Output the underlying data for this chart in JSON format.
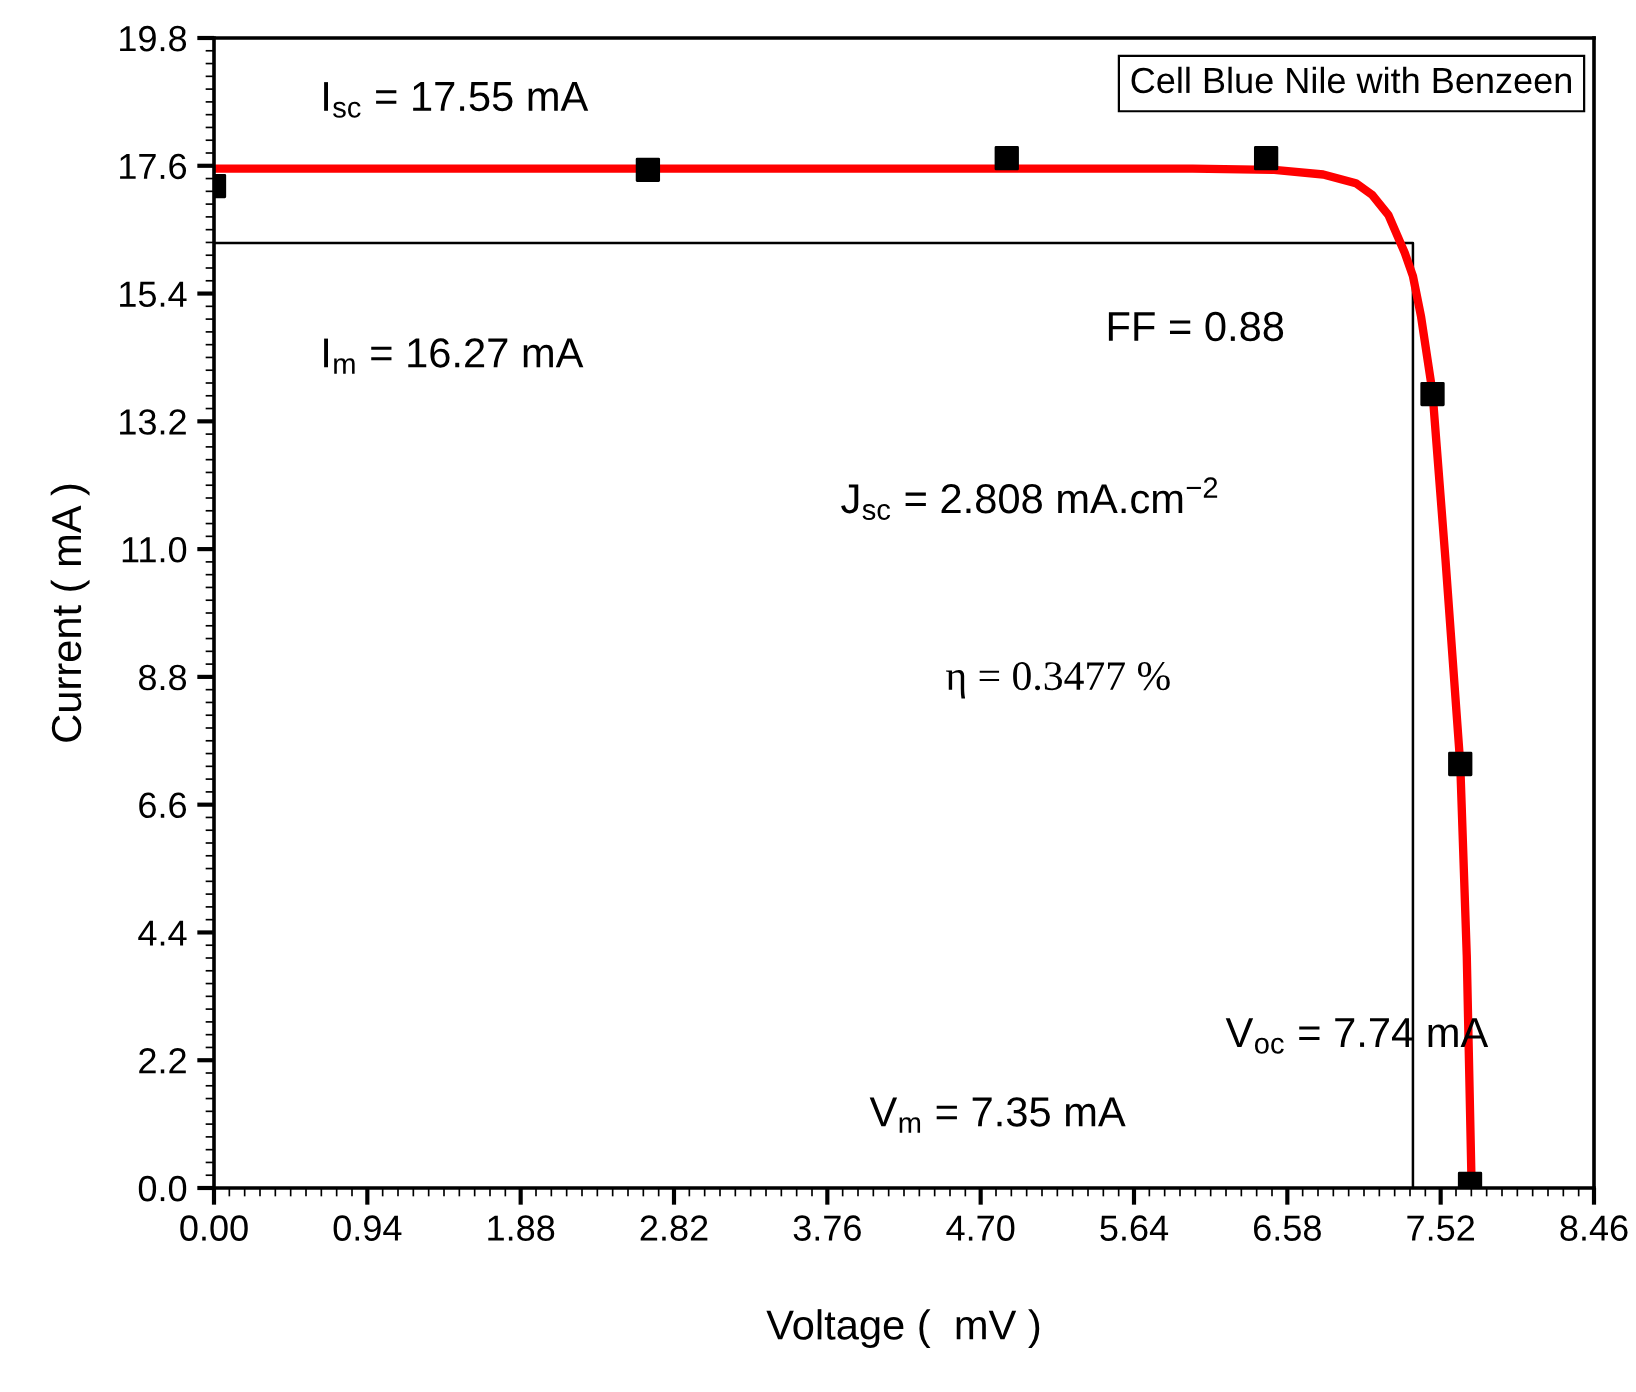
{
  "chart_data": {
    "type": "scatter",
    "xlabel": "Voltage (  mV )",
    "ylabel": "Current ( mA )",
    "legend_title": "Cell Blue Nile with Benzeen",
    "grid": false,
    "series": [
      {
        "color": "#000000",
        "marker": "square",
        "x": [
          0.0,
          2.66,
          4.86,
          6.45,
          7.47,
          7.64,
          7.7
        ],
        "values": [
          17.25,
          17.53,
          17.73,
          17.73,
          13.67,
          7.3,
          0.07
        ]
      },
      {
        "type": "line",
        "color": "#ff0000",
        "marker": "none",
        "line_style": "solid",
        "x": [
          0,
          1,
          2,
          3,
          4,
          5,
          6,
          6.5,
          6.8,
          7.0,
          7.1,
          7.2,
          7.3,
          7.35,
          7.4,
          7.47,
          7.55,
          7.64,
          7.68,
          7.71
        ],
        "values": [
          17.55,
          17.55,
          17.55,
          17.55,
          17.55,
          17.55,
          17.55,
          17.53,
          17.45,
          17.3,
          17.1,
          16.75,
          16.1,
          15.7,
          15.0,
          13.7,
          10.8,
          7.3,
          4.0,
          0.0
        ]
      },
      {
        "type": "line",
        "color": "#000000",
        "marker": "none",
        "line_style": "solid",
        "x": [
          0,
          7.35,
          7.35
        ],
        "values": [
          16.27,
          16.27,
          0
        ]
      }
    ],
    "annotations": [
      "I$_{sc}$ = 17.55 mA",
      "I$_{m}$ = 16.27 mA",
      "FF = 0.88",
      "J$_{sc}$ = 2.808 mA.cm$^{−2}$",
      "η = 0.3477 %",
      "V$_{oc}$ = 7.74 mA",
      "V$_{m}$ = 7.35 mA"
    ],
    "xlim": [
      0,
      8.46
    ],
    "ylim": [
      0,
      19.8
    ],
    "xticks": [
      {
        "value": 0,
        "label": "0.00"
      },
      {
        "value": 0.94,
        "label": "0.94"
      },
      {
        "value": 1.88,
        "label": "1.88"
      },
      {
        "value": 2.82,
        "label": "2.82"
      },
      {
        "value": 3.76,
        "label": "3.76"
      },
      {
        "value": 4.7,
        "label": "4.70"
      },
      {
        "value": 5.64,
        "label": "5.64"
      },
      {
        "value": 6.58,
        "label": "6.58"
      },
      {
        "value": 7.52,
        "label": "7.52"
      },
      {
        "value": 8.46,
        "label": "8.46"
      }
    ],
    "yticks": [
      {
        "value": 0,
        "label": "0.0"
      },
      {
        "value": 2.2,
        "label": "2.2"
      },
      {
        "value": 4.4,
        "label": "4.4"
      },
      {
        "value": 6.6,
        "label": "6.6"
      },
      {
        "value": 8.8,
        "label": "8.8"
      },
      {
        "value": 11,
        "label": "11.0"
      },
      {
        "value": 13.2,
        "label": "13.2"
      },
      {
        "value": 15.4,
        "label": "15.4"
      },
      {
        "value": 17.6,
        "label": "17.6"
      },
      {
        "value": 19.8,
        "label": "19.8"
      }
    ]
  }
}
